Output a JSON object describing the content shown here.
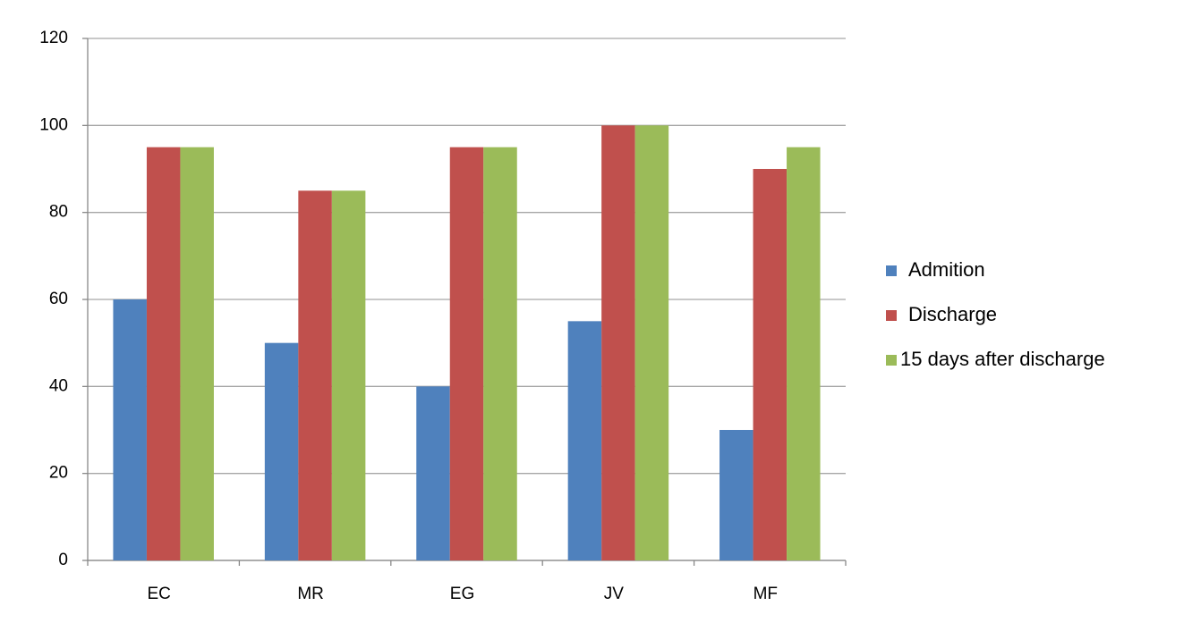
{
  "chart_data": {
    "type": "bar",
    "categories": [
      "EC",
      "MR",
      "EG",
      "JV",
      "MF"
    ],
    "series": [
      {
        "name": "Admition",
        "color": "#4f81bd",
        "values": [
          60,
          50,
          40,
          55,
          30
        ]
      },
      {
        "name": "Discharge",
        "color": "#c0504d",
        "values": [
          95,
          85,
          95,
          100,
          90
        ]
      },
      {
        "name": "15 days after discharge",
        "color": "#9bbb59",
        "values": [
          95,
          85,
          95,
          100,
          95
        ]
      }
    ],
    "ylim": [
      0,
      120
    ],
    "yticks": [
      0,
      20,
      40,
      60,
      80,
      100,
      120
    ],
    "grid": true,
    "legend": "right"
  }
}
